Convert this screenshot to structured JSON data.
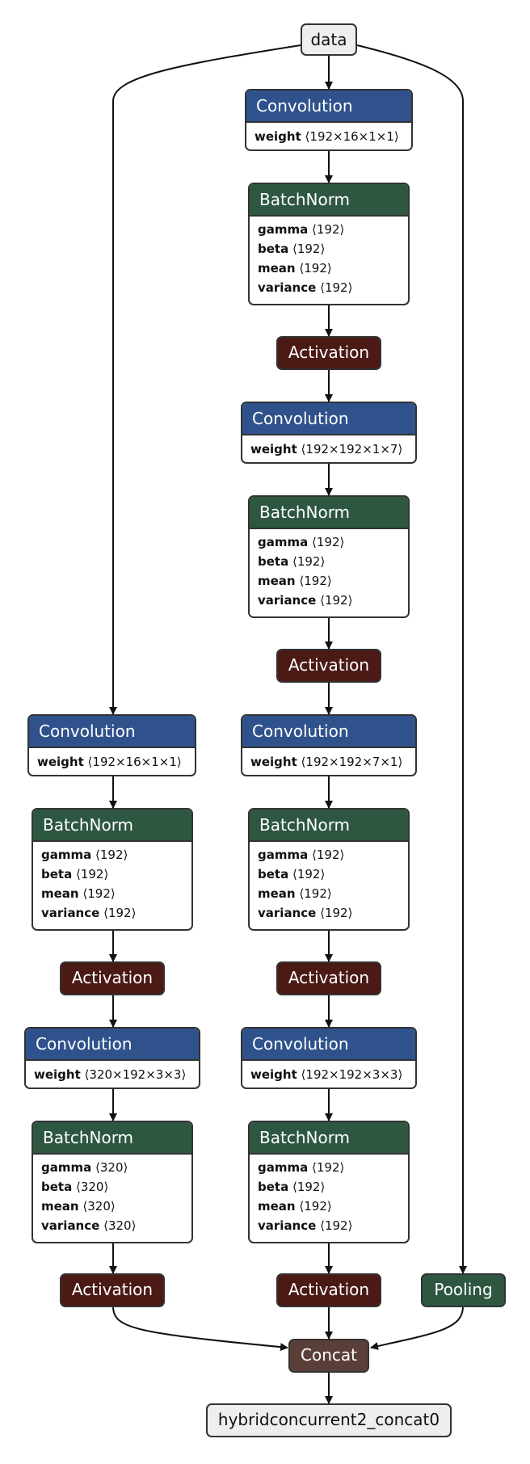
{
  "nodes": {
    "data": "data",
    "c1": {
      "title": "Convolution",
      "k": "weight",
      "v": "⟨192×16×1×1⟩"
    },
    "b1": {
      "title": "BatchNorm",
      "attrs": [
        {
          "k": "gamma",
          "v": "⟨192⟩"
        },
        {
          "k": "beta",
          "v": "⟨192⟩"
        },
        {
          "k": "mean",
          "v": "⟨192⟩"
        },
        {
          "k": "variance",
          "v": "⟨192⟩"
        }
      ]
    },
    "a1": "Activation",
    "c2": {
      "title": "Convolution",
      "k": "weight",
      "v": "⟨192×192×1×7⟩"
    },
    "b2": {
      "title": "BatchNorm",
      "attrs": [
        {
          "k": "gamma",
          "v": "⟨192⟩"
        },
        {
          "k": "beta",
          "v": "⟨192⟩"
        },
        {
          "k": "mean",
          "v": "⟨192⟩"
        },
        {
          "k": "variance",
          "v": "⟨192⟩"
        }
      ]
    },
    "a2": "Activation",
    "cL1": {
      "title": "Convolution",
      "k": "weight",
      "v": "⟨192×16×1×1⟩"
    },
    "c3": {
      "title": "Convolution",
      "k": "weight",
      "v": "⟨192×192×7×1⟩"
    },
    "bL1": {
      "title": "BatchNorm",
      "attrs": [
        {
          "k": "gamma",
          "v": "⟨192⟩"
        },
        {
          "k": "beta",
          "v": "⟨192⟩"
        },
        {
          "k": "mean",
          "v": "⟨192⟩"
        },
        {
          "k": "variance",
          "v": "⟨192⟩"
        }
      ]
    },
    "b3": {
      "title": "BatchNorm",
      "attrs": [
        {
          "k": "gamma",
          "v": "⟨192⟩"
        },
        {
          "k": "beta",
          "v": "⟨192⟩"
        },
        {
          "k": "mean",
          "v": "⟨192⟩"
        },
        {
          "k": "variance",
          "v": "⟨192⟩"
        }
      ]
    },
    "aL1": "Activation",
    "a3": "Activation",
    "cL2": {
      "title": "Convolution",
      "k": "weight",
      "v": "⟨320×192×3×3⟩"
    },
    "c4": {
      "title": "Convolution",
      "k": "weight",
      "v": "⟨192×192×3×3⟩"
    },
    "bL2": {
      "title": "BatchNorm",
      "attrs": [
        {
          "k": "gamma",
          "v": "⟨320⟩"
        },
        {
          "k": "beta",
          "v": "⟨320⟩"
        },
        {
          "k": "mean",
          "v": "⟨320⟩"
        },
        {
          "k": "variance",
          "v": "⟨320⟩"
        }
      ]
    },
    "b4": {
      "title": "BatchNorm",
      "attrs": [
        {
          "k": "gamma",
          "v": "⟨192⟩"
        },
        {
          "k": "beta",
          "v": "⟨192⟩"
        },
        {
          "k": "mean",
          "v": "⟨192⟩"
        },
        {
          "k": "variance",
          "v": "⟨192⟩"
        }
      ]
    },
    "aL2": "Activation",
    "a4": "Activation",
    "pool": "Pooling",
    "concat": "Concat",
    "out": "hybridconcurrent2_concat0"
  },
  "colors": {
    "convolution": "#2f528c",
    "batchnorm": "#2e5741",
    "activation": "#4b1a15",
    "pooling": "#2e5741",
    "concat": "#5a3f39",
    "io": "#eeeeee"
  }
}
